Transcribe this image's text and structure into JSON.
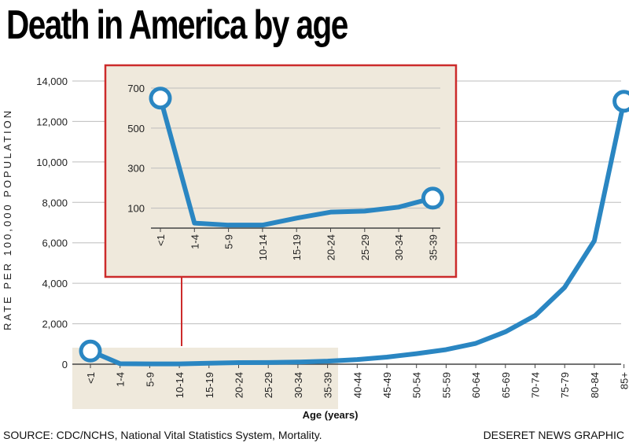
{
  "title": "Death in America by age",
  "source": "SOURCE: CDC/NCHS, National Vital Statistics System, Mortality.",
  "credit": "DESERET NEWS GRAPHIC",
  "colors": {
    "line": "#2a86c2",
    "panel": "#efe9dc",
    "frame": "#cc2b2b",
    "grid": "#bdbdbd"
  },
  "chart_data": [
    {
      "type": "line",
      "title": "Death in America by age",
      "xlabel": "Age (years)",
      "ylabel": "RATE PER 100,000 POPULATION",
      "ylim": [
        0,
        14000
      ],
      "yticks": [
        0,
        2000,
        4000,
        6000,
        8000,
        10000,
        12000,
        14000
      ],
      "ytick_labels": [
        "0",
        "2,000",
        "4,000",
        "6,000",
        "8,000",
        "10,000",
        "12,000",
        "14,000"
      ],
      "categories": [
        "<1",
        "1-4",
        "5-9",
        "10-14",
        "15-19",
        "20-24",
        "25-29",
        "30-34",
        "35-39",
        "40-44",
        "45-49",
        "50-54",
        "55-59",
        "60-64",
        "65-69",
        "70-74",
        "75-79",
        "80-84",
        "85+"
      ],
      "values": [
        650,
        25,
        15,
        15,
        50,
        80,
        85,
        105,
        150,
        230,
        350,
        520,
        720,
        1030,
        1600,
        2400,
        3800,
        6100,
        13000
      ],
      "grid": true
    },
    {
      "type": "line",
      "title": "",
      "ylim": [
        0,
        700
      ],
      "yticks": [
        100,
        300,
        500,
        700
      ],
      "ytick_labels": [
        "100",
        "300",
        "500",
        "700"
      ],
      "categories": [
        "<1",
        "1-4",
        "5-9",
        "10-14",
        "15-19",
        "20-24",
        "25-29",
        "30-34",
        "35-39"
      ],
      "values": [
        650,
        25,
        15,
        15,
        50,
        80,
        85,
        105,
        150
      ],
      "grid": true
    }
  ]
}
